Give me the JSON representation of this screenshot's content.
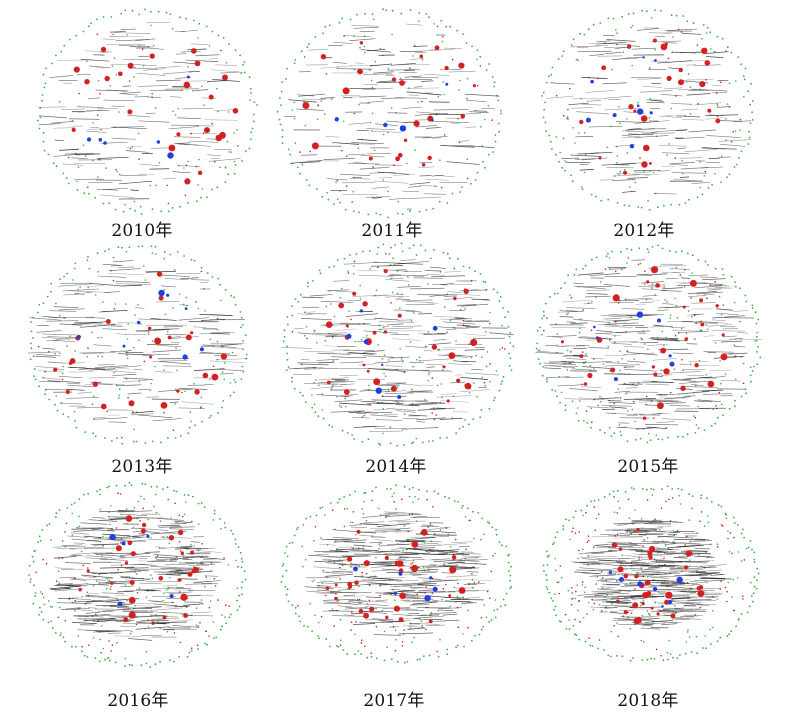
{
  "figure": {
    "panels": [
      {
        "label": "2010年",
        "outline": "circle"
      },
      {
        "label": "2011年",
        "outline": "circle"
      },
      {
        "label": "2012年",
        "outline": "circle"
      },
      {
        "label": "2013年",
        "outline": "circle"
      },
      {
        "label": "2014年",
        "outline": "circle"
      },
      {
        "label": "2015年",
        "outline": "circle"
      },
      {
        "label": "2016年",
        "outline": "ellipse"
      },
      {
        "label": "2017年",
        "outline": "ellipse"
      },
      {
        "label": "2018年",
        "outline": "ellipse"
      }
    ],
    "colors": {
      "peripheral_nodes": "#3cb043",
      "red_nodes": "#d42020",
      "blue_nodes": "#1f3fe0",
      "label_text": "#111111",
      "edges": "#222222"
    }
  }
}
